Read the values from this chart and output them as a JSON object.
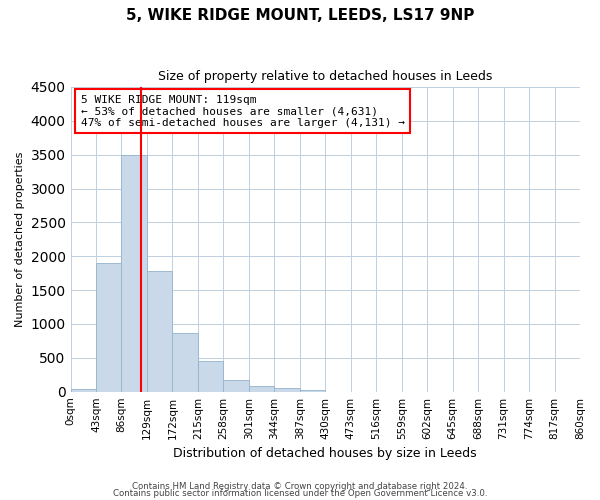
{
  "title": "5, WIKE RIDGE MOUNT, LEEDS, LS17 9NP",
  "subtitle": "Size of property relative to detached houses in Leeds",
  "xlabel": "Distribution of detached houses by size in Leeds",
  "ylabel": "Number of detached properties",
  "bar_values": [
    40,
    1900,
    3500,
    1780,
    860,
    460,
    175,
    85,
    55,
    30,
    0,
    0,
    0,
    0,
    0,
    0,
    0,
    0,
    0,
    0
  ],
  "tick_labels": [
    "0sqm",
    "43sqm",
    "86sqm",
    "129sqm",
    "172sqm",
    "215sqm",
    "258sqm",
    "301sqm",
    "344sqm",
    "387sqm",
    "430sqm",
    "473sqm",
    "516sqm",
    "559sqm",
    "602sqm",
    "645sqm",
    "688sqm",
    "731sqm",
    "774sqm",
    "817sqm",
    "860sqm"
  ],
  "bar_color": "#c9d9ea",
  "bar_edge_color": "#92b4cc",
  "vline_x": 2.77,
  "vline_color": "red",
  "annotation_line1": "5 WIKE RIDGE MOUNT: 119sqm",
  "annotation_line2": "← 53% of detached houses are smaller (4,631)",
  "annotation_line3": "47% of semi-detached houses are larger (4,131) →",
  "ylim": [
    0,
    4500
  ],
  "yticks": [
    0,
    500,
    1000,
    1500,
    2000,
    2500,
    3000,
    3500,
    4000,
    4500
  ],
  "footer_line1": "Contains HM Land Registry data © Crown copyright and database right 2024.",
  "footer_line2": "Contains public sector information licensed under the Open Government Licence v3.0.",
  "background_color": "#ffffff",
  "grid_color": "#c0cfdf"
}
